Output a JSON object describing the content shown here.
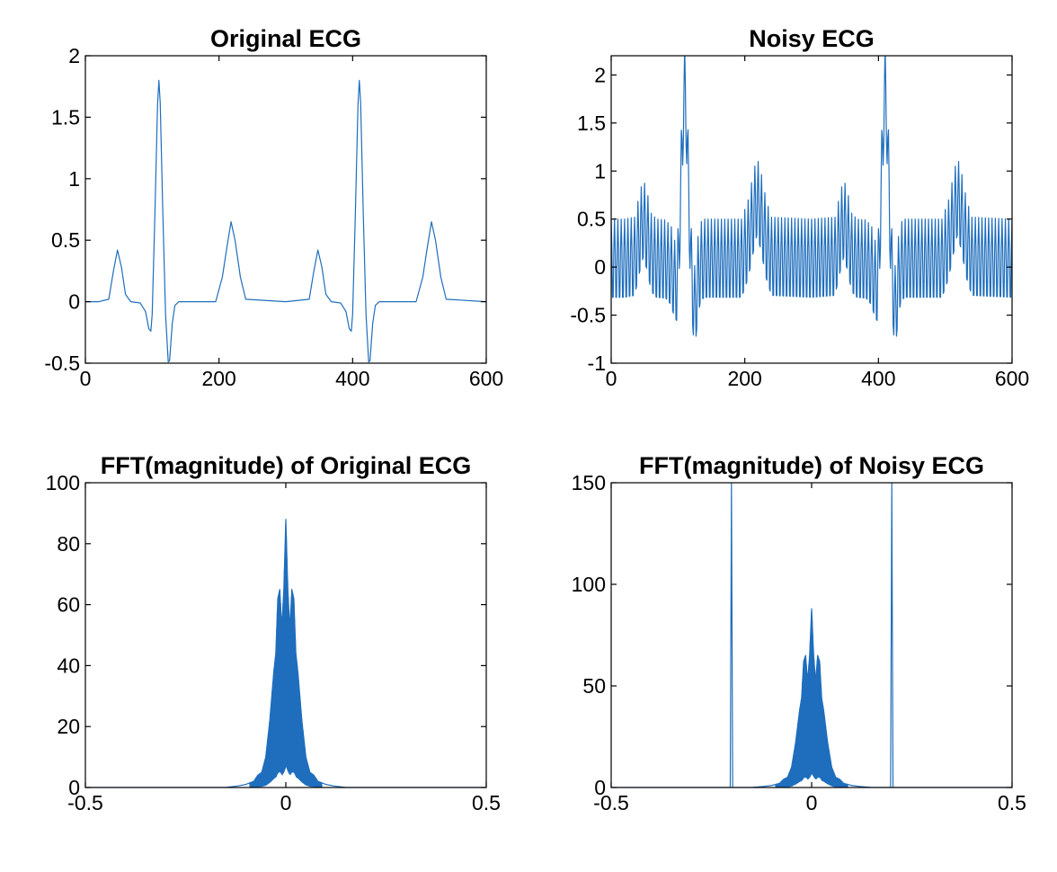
{
  "colors": {
    "line": "#1f6ebd",
    "axes": "#000000",
    "background": "#ffffff"
  },
  "chart_data": [
    {
      "id": "p1",
      "type": "line",
      "title": "Original ECG",
      "xlim": [
        0,
        600
      ],
      "ylim": [
        -0.5,
        2
      ],
      "xticks": [
        0,
        200,
        400,
        600
      ],
      "xtick_labels": [
        "0",
        "200",
        "400",
        "600"
      ],
      "yticks": [
        -0.5,
        0,
        0.5,
        1,
        1.5,
        2
      ],
      "ytick_labels": [
        "-0.5",
        "0",
        "0.5",
        "1",
        "1.5",
        "2"
      ],
      "grid": false,
      "series": [
        {
          "x": [
            0,
            20,
            35,
            42,
            48,
            54,
            60,
            68,
            82,
            90,
            95,
            98,
            100,
            104,
            108,
            110,
            112,
            116,
            120,
            124,
            126,
            130,
            134,
            140,
            150,
            195,
            205,
            212,
            218,
            224,
            232,
            240,
            300,
            335,
            342,
            348,
            354,
            360,
            368,
            382,
            390,
            395,
            398,
            400,
            404,
            408,
            410,
            412,
            416,
            420,
            424,
            426,
            430,
            434,
            440,
            450,
            495,
            505,
            512,
            518,
            524,
            532,
            540,
            600
          ],
          "y": [
            0,
            0,
            0.02,
            0.25,
            0.42,
            0.28,
            0.06,
            0,
            -0.01,
            -0.08,
            -0.22,
            -0.24,
            -0.1,
            0.7,
            1.6,
            1.8,
            1.62,
            0.7,
            -0.1,
            -0.49,
            -0.48,
            -0.18,
            -0.03,
            0,
            0,
            0,
            0.2,
            0.45,
            0.65,
            0.5,
            0.2,
            0.02,
            0,
            0.02,
            0.25,
            0.42,
            0.28,
            0.06,
            0,
            -0.01,
            -0.08,
            -0.22,
            -0.24,
            -0.1,
            0.7,
            1.6,
            1.8,
            1.62,
            0.7,
            -0.1,
            -0.49,
            -0.48,
            -0.18,
            -0.03,
            0,
            0,
            0,
            0.2,
            0.45,
            0.65,
            0.5,
            0.2,
            0.02,
            0
          ]
        }
      ]
    },
    {
      "id": "p2",
      "type": "line",
      "title": "Noisy ECG",
      "xlim": [
        0,
        600
      ],
      "ylim": [
        -1,
        2.2
      ],
      "xticks": [
        0,
        200,
        400,
        600
      ],
      "xtick_labels": [
        "0",
        "200",
        "400",
        "600"
      ],
      "yticks": [
        -1,
        -0.5,
        0,
        0.5,
        1,
        1.5,
        2
      ],
      "ytick_labels": [
        "-1",
        "-0.5",
        "0",
        "0.5",
        "1",
        "1.5",
        "2"
      ],
      "grid": false,
      "noise": {
        "amplitude": 0.45,
        "offset": 0.05,
        "period_samples": 5,
        "length": 600
      },
      "series": [
        {
          "x": [
            0,
            20,
            35,
            42,
            48,
            54,
            60,
            68,
            82,
            90,
            95,
            98,
            100,
            104,
            108,
            110,
            112,
            116,
            120,
            124,
            126,
            130,
            134,
            140,
            150,
            195,
            205,
            212,
            218,
            224,
            232,
            240,
            300,
            335,
            342,
            348,
            354,
            360,
            368,
            382,
            390,
            395,
            398,
            400,
            404,
            408,
            410,
            412,
            416,
            420,
            424,
            426,
            430,
            434,
            440,
            450,
            495,
            505,
            512,
            518,
            524,
            532,
            540,
            600
          ],
          "y": [
            0,
            0,
            0.02,
            0.25,
            0.42,
            0.28,
            0.06,
            0,
            -0.01,
            -0.08,
            -0.22,
            -0.24,
            -0.1,
            0.7,
            1.6,
            1.8,
            1.62,
            0.7,
            -0.1,
            -0.49,
            -0.48,
            -0.18,
            -0.03,
            0,
            0,
            0,
            0.2,
            0.45,
            0.65,
            0.5,
            0.2,
            0.02,
            0,
            0.02,
            0.25,
            0.42,
            0.28,
            0.06,
            0,
            -0.01,
            -0.08,
            -0.22,
            -0.24,
            -0.1,
            0.7,
            1.6,
            1.8,
            1.62,
            0.7,
            -0.1,
            -0.49,
            -0.48,
            -0.18,
            -0.03,
            0,
            0,
            0,
            0.2,
            0.45,
            0.65,
            0.5,
            0.2,
            0.02,
            0
          ]
        }
      ]
    },
    {
      "id": "p3",
      "type": "line",
      "title": "FFT(magnitude) of Original ECG",
      "xlim": [
        -0.5,
        0.5
      ],
      "ylim": [
        0,
        100
      ],
      "xticks": [
        -0.5,
        0,
        0.5
      ],
      "xtick_labels": [
        "-0.5",
        "0",
        "0.5"
      ],
      "yticks": [
        0,
        20,
        40,
        60,
        80,
        100
      ],
      "ytick_labels": [
        "0",
        "20",
        "40",
        "60",
        "80",
        "100"
      ],
      "grid": false,
      "series": [
        {
          "x": [
            -0.5,
            -0.15,
            -0.12,
            -0.1,
            -0.08,
            -0.07,
            -0.06,
            -0.05,
            -0.04,
            -0.03,
            -0.025,
            -0.02,
            -0.015,
            -0.01,
            -0.005,
            0,
            0.005,
            0.01,
            0.015,
            0.02,
            0.025,
            0.03,
            0.04,
            0.05,
            0.06,
            0.07,
            0.08,
            0.1,
            0.12,
            0.15,
            0.5
          ],
          "y": [
            0,
            0,
            0.5,
            1,
            2,
            4,
            5,
            10,
            22,
            38,
            44,
            62,
            65,
            52,
            65,
            88,
            65,
            52,
            65,
            62,
            44,
            38,
            22,
            10,
            5,
            4,
            2,
            1,
            0.5,
            0,
            0
          ]
        }
      ]
    },
    {
      "id": "p4",
      "type": "line",
      "title": "FFT(magnitude) of Noisy ECG",
      "xlim": [
        -0.5,
        0.5
      ],
      "ylim": [
        0,
        150
      ],
      "xticks": [
        -0.5,
        0,
        0.5
      ],
      "xtick_labels": [
        "-0.5",
        "0",
        "0.5"
      ],
      "yticks": [
        0,
        50,
        100,
        150
      ],
      "ytick_labels": [
        "0",
        "50",
        "100",
        "150"
      ],
      "grid": false,
      "series": [
        {
          "x": [
            -0.5,
            -0.203,
            -0.2,
            -0.197,
            -0.15,
            -0.12,
            -0.1,
            -0.08,
            -0.07,
            -0.06,
            -0.05,
            -0.04,
            -0.03,
            -0.025,
            -0.02,
            -0.015,
            -0.01,
            -0.005,
            0,
            0.005,
            0.01,
            0.015,
            0.02,
            0.025,
            0.03,
            0.04,
            0.05,
            0.06,
            0.07,
            0.08,
            0.1,
            0.12,
            0.15,
            0.197,
            0.2,
            0.203,
            0.5
          ],
          "y": [
            0,
            0,
            150,
            0,
            0,
            0.5,
            1,
            2,
            4,
            5,
            10,
            22,
            38,
            44,
            62,
            65,
            52,
            65,
            88,
            65,
            52,
            65,
            62,
            44,
            38,
            22,
            10,
            5,
            4,
            2,
            1,
            0.5,
            0,
            0,
            150,
            0,
            0
          ]
        }
      ]
    }
  ]
}
